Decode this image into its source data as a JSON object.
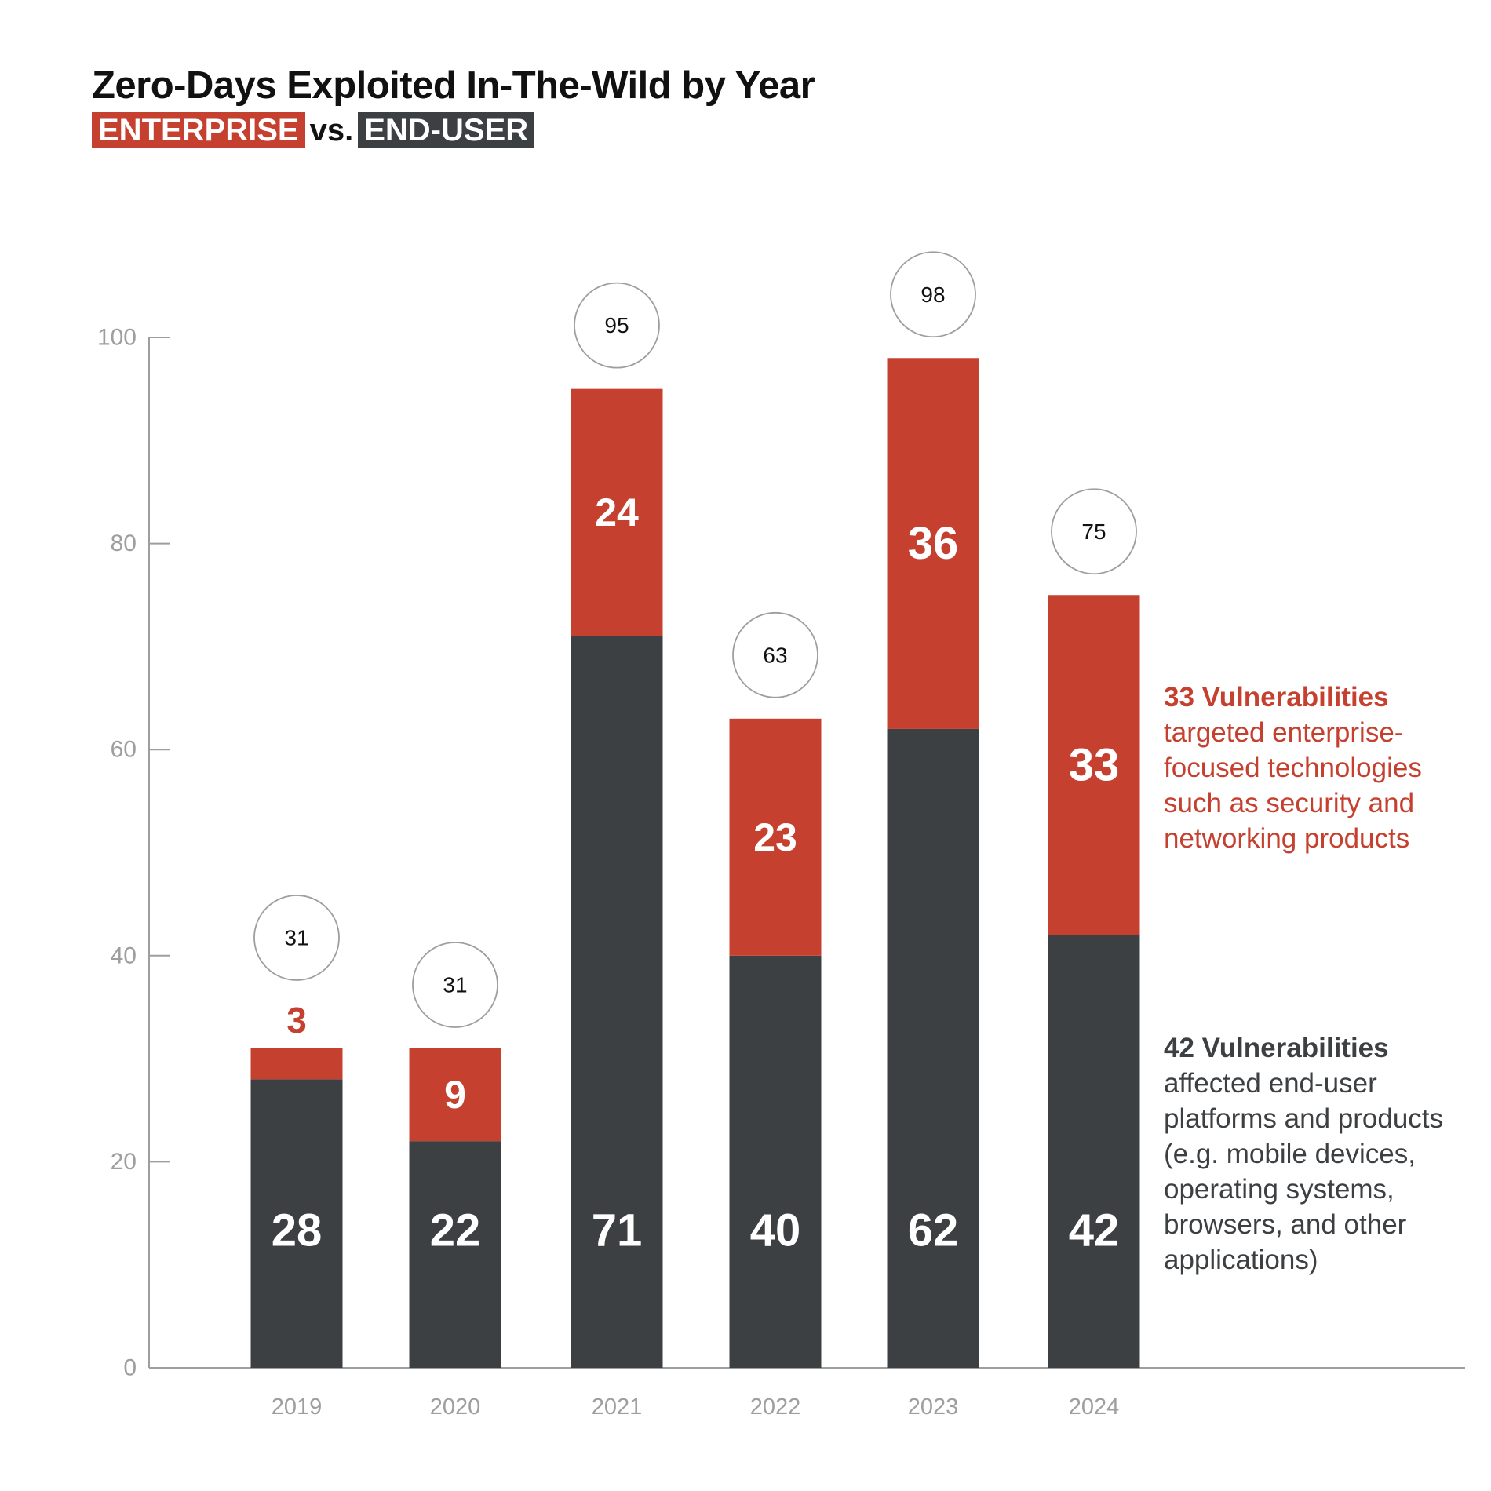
{
  "title": "Zero-Days Exploited In-The-Wild by Year",
  "subtitle": {
    "enterprise_tag": "ENTERPRISE",
    "vs": "vs.",
    "enduser_tag": "END-USER"
  },
  "colors": {
    "enterprise": "#c5402f",
    "end_user": "#3d4043",
    "axis": "#9e9e9e",
    "text": "#111111"
  },
  "callouts": {
    "enterprise": {
      "head": "33 Vulnerabilities",
      "body": "targeted enterprise-focused technologies such as security and networking products"
    },
    "end_user": {
      "head": "42 Vulnerabilities",
      "body": "affected end-user platforms and products (e.g. mobile devices, operating systems, browsers, and other applications)"
    }
  },
  "chart_data": {
    "type": "bar",
    "stacked": true,
    "categories": [
      "2019",
      "2020",
      "2021",
      "2022",
      "2023",
      "2024"
    ],
    "series": [
      {
        "name": "END-USER",
        "values": [
          28,
          22,
          71,
          40,
          62,
          42
        ]
      },
      {
        "name": "ENTERPRISE",
        "values": [
          3,
          9,
          24,
          23,
          36,
          33
        ]
      }
    ],
    "totals": [
      31,
      31,
      95,
      63,
      98,
      75
    ],
    "ylim": [
      0,
      100
    ],
    "yticks": [
      0,
      20,
      40,
      60,
      80,
      100
    ],
    "title": "Zero-Days Exploited In-The-Wild by Year",
    "xlabel": "",
    "ylabel": "",
    "grid": false,
    "legend": "none"
  }
}
